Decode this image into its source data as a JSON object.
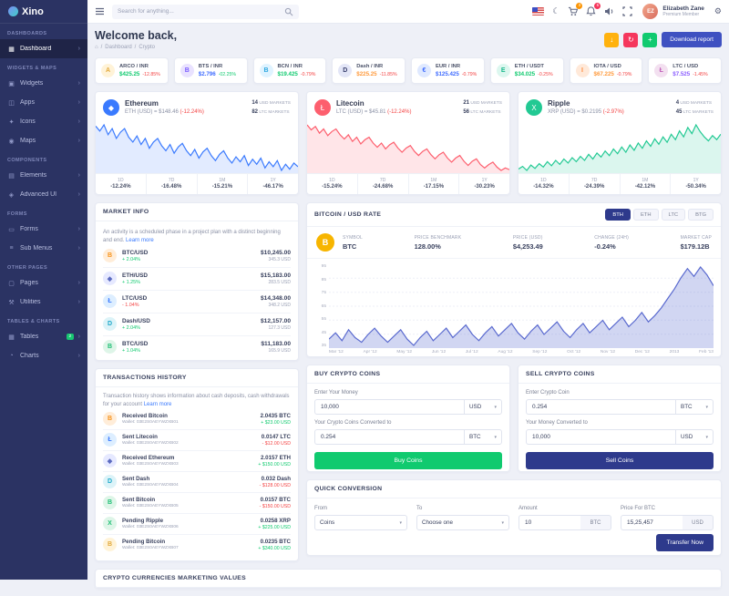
{
  "palette": {
    "sidebar_bg": "#2b3363",
    "primary_navy": "#2e3a8c",
    "accent_blue": "#3f51c1",
    "green": "#10ca6f",
    "red": "#f34343",
    "pink": "#f5365c",
    "orange_badge": "#fb9505",
    "yellow": "#ffb20e",
    "page_bg": "#eef0f7"
  },
  "icons": {
    "dark_mode": "☾",
    "settings": "⚙",
    "home": "⌂",
    "caret_down": "▾",
    "chevron_right": "›"
  },
  "sidebar": {
    "logo_text": "Xino",
    "entries": [
      {
        "cls": "section",
        "label": "DASHBOARDS",
        "dn": "sidebar-section-dashboards",
        "it": "false"
      },
      {
        "cls": "item active",
        "label": "Dashboard",
        "icon": "▦",
        "dn": "sidebar-item-dashboard",
        "it": "true"
      },
      {
        "cls": "section",
        "label": "WIDGETS & MAPS",
        "dn": "sidebar-section-widgets-maps",
        "it": "false"
      },
      {
        "cls": "item",
        "label": "Widgets",
        "icon": "▣",
        "dn": "sidebar-item-widgets",
        "it": "true"
      },
      {
        "cls": "item",
        "label": "Apps",
        "icon": "◫",
        "dn": "sidebar-item-apps",
        "it": "true"
      },
      {
        "cls": "item",
        "label": "Icons",
        "icon": "✦",
        "dn": "sidebar-item-icons",
        "it": "true"
      },
      {
        "cls": "item",
        "label": "Maps",
        "icon": "◉",
        "dn": "sidebar-item-maps",
        "it": "true"
      },
      {
        "cls": "section",
        "label": "COMPONENTS",
        "dn": "sidebar-section-components",
        "it": "false"
      },
      {
        "cls": "item",
        "label": "Elements",
        "icon": "▤",
        "dn": "sidebar-item-elements",
        "it": "true"
      },
      {
        "cls": "item",
        "label": "Advanced UI",
        "icon": "◈",
        "dn": "sidebar-item-advanced-ui",
        "it": "true"
      },
      {
        "cls": "section",
        "label": "FORMS",
        "dn": "sidebar-section-forms",
        "it": "false"
      },
      {
        "cls": "item",
        "label": "Forms",
        "icon": "▭",
        "dn": "sidebar-item-forms",
        "it": "true"
      },
      {
        "cls": "item",
        "label": "Sub Menus",
        "icon": "≡",
        "dn": "sidebar-item-sub-menus",
        "it": "true"
      },
      {
        "cls": "section",
        "label": "OTHER PAGES",
        "dn": "sidebar-section-other-pages",
        "it": "false"
      },
      {
        "cls": "item",
        "label": "Pages",
        "icon": "▢",
        "dn": "sidebar-item-pages",
        "it": "true"
      },
      {
        "cls": "item",
        "label": "Utilities",
        "icon": "⚒",
        "dn": "sidebar-item-utilities",
        "it": "true"
      },
      {
        "cls": "section",
        "label": "TABLES & CHARTS",
        "dn": "sidebar-section-tables-charts",
        "it": "false"
      },
      {
        "cls": "item",
        "label": "Tables",
        "icon": "▦",
        "badge": "2",
        "dn": "sidebar-item-tables",
        "it": "true"
      },
      {
        "cls": "item",
        "label": "Charts",
        "icon": "◔",
        "dn": "sidebar-item-charts",
        "it": "true"
      }
    ]
  },
  "header": {
    "search_placeholder": "Search for anything...",
    "cart_badge": "3",
    "bell_badge": "5",
    "user_name": "Elizabeth Zane",
    "user_role": "Premium Member",
    "avatar_initials": "EZ"
  },
  "welcome": {
    "title": "Welcome back,",
    "breadcrumb": [
      "Dashboard",
      "Crypto"
    ],
    "actions": [
      {
        "dn": "export-button",
        "glyph": "↓",
        "bg": "#ffb20e"
      },
      {
        "dn": "refresh-button",
        "glyph": "↻",
        "bg": "#f5365c"
      },
      {
        "dn": "add-button",
        "glyph": "+",
        "bg": "#10ca6f"
      }
    ],
    "download_label": "Download report"
  },
  "tickers": [
    {
      "pair": "ARCO / INR",
      "price": "$425.25",
      "change": "-12.85%",
      "price_color": "#10ca6f",
      "change_color": "#f34343",
      "icon": "A",
      "icon_bg": "#fff3d8",
      "icon_color": "#e2a93b"
    },
    {
      "pair": "BTS / INR",
      "price": "$2.796",
      "change": "-02.25%",
      "price_color": "#3e6bff",
      "change_color": "#10ca6f",
      "icon": "B",
      "icon_bg": "#e9e2ff",
      "icon_color": "#7a5cff"
    },
    {
      "pair": "BCN / INR",
      "price": "$19.425",
      "change": "-0.79%",
      "price_color": "#10ca6f",
      "change_color": "#f34343",
      "icon": "B",
      "icon_bg": "#dff3ff",
      "icon_color": "#2da8e0"
    },
    {
      "pair": "Dash / INR",
      "price": "$225.25",
      "change": "-11.85%",
      "price_color": "#ff9a3c",
      "change_color": "#f34343",
      "icon": "D",
      "icon_bg": "#e3e6f7",
      "icon_color": "#39406e"
    },
    {
      "pair": "EUR / INR",
      "price": "$125.425",
      "change": "-0.79%",
      "price_color": "#3e6bff",
      "change_color": "#f34343",
      "icon": "€",
      "icon_bg": "#dfe9ff",
      "icon_color": "#3e6bff"
    },
    {
      "pair": "ETH / USDT",
      "price": "$34.025",
      "change": "-0.25%",
      "price_color": "#10ca6f",
      "change_color": "#f34343",
      "icon": "E",
      "icon_bg": "#dcf7ef",
      "icon_color": "#18b88a"
    },
    {
      "pair": "IOTA / USD",
      "price": "$67.225",
      "change": "-0.79%",
      "price_color": "#ff9a3c",
      "change_color": "#f34343",
      "icon": "I",
      "icon_bg": "#ffe9d9",
      "icon_color": "#ff8a3c"
    },
    {
      "pair": "LTC / USD",
      "price": "$7.525",
      "change": "-1.45%",
      "price_color": "#8a5cff",
      "change_color": "#f34343",
      "icon": "Ł",
      "icon_bg": "#f3e0f0",
      "icon_color": "#c05cb8"
    }
  ],
  "coins": [
    {
      "name": "Ethereum",
      "sub": "ETH (USD) = $148.46",
      "change": "(-12.24%)",
      "icon": "◆",
      "icon_bg": "#3a7afe",
      "markets_a_num": "14",
      "markets_a_label": "USD MARKETS",
      "markets_b_num": "82",
      "markets_b_label": "LTC MARKETS",
      "stats": [
        {
          "label": "1D",
          "value": "-12.24%"
        },
        {
          "label": "7D",
          "value": "-16.48%"
        },
        {
          "label": "1M",
          "value": "-15.21%"
        },
        {
          "label": "1Y",
          "value": "-46.17%"
        }
      ],
      "chart": {
        "values": [
          62,
          58,
          63,
          55,
          60,
          52,
          57,
          60,
          53,
          49,
          54,
          47,
          52,
          44,
          49,
          52,
          46,
          42,
          47,
          40,
          45,
          48,
          42,
          38,
          43,
          36,
          41,
          44,
          38,
          34,
          39,
          42,
          36,
          32,
          37,
          33,
          38,
          30,
          35,
          31,
          36,
          28,
          33,
          29,
          34,
          26,
          31,
          27,
          32,
          29
        ],
        "color": "#3a7afe",
        "fill": "rgba(58,122,254,0.15)"
      }
    },
    {
      "name": "Litecoin",
      "sub": "LTC (USD) = $45.81",
      "change": "(-12.24%)",
      "icon": "Ł",
      "icon_bg": "#fd5f6e",
      "markets_a_num": "21",
      "markets_a_label": "USD MARKETS",
      "markets_b_num": "56",
      "markets_b_label": "LTC MARKETS",
      "stats": [
        {
          "label": "1D",
          "value": "-15.24%"
        },
        {
          "label": "7D",
          "value": "-24.68%"
        },
        {
          "label": "1M",
          "value": "-17.15%"
        },
        {
          "label": "1Y",
          "value": "-30.23%"
        }
      ],
      "chart": {
        "values": [
          70,
          64,
          68,
          60,
          65,
          57,
          62,
          65,
          58,
          53,
          58,
          50,
          55,
          47,
          52,
          55,
          48,
          43,
          48,
          41,
          46,
          49,
          42,
          37,
          42,
          45,
          38,
          33,
          38,
          41,
          34,
          29,
          34,
          37,
          30,
          25,
          30,
          33,
          26,
          21,
          26,
          29,
          22,
          18,
          22,
          25,
          19,
          15,
          18,
          16
        ],
        "color": "#fd5f6e",
        "fill": "rgba(253,95,110,0.16)"
      }
    },
    {
      "name": "Ripple",
      "sub": "XRP (USD) = $0.2195",
      "change": "(-2.97%)",
      "icon": "X",
      "icon_bg": "#22c993",
      "markets_a_num": "4",
      "markets_a_label": "USD MARKETS",
      "markets_b_num": "45",
      "markets_b_label": "LTC MARKETS",
      "stats": [
        {
          "label": "1D",
          "value": "-14.32%"
        },
        {
          "label": "7D",
          "value": "-24.39%"
        },
        {
          "label": "1M",
          "value": "-42.12%"
        },
        {
          "label": "1Y",
          "value": "-50.34%"
        }
      ],
      "chart": {
        "values": [
          22,
          26,
          20,
          28,
          23,
          30,
          25,
          33,
          27,
          35,
          29,
          37,
          31,
          39,
          33,
          41,
          35,
          44,
          37,
          46,
          40,
          49,
          42,
          52,
          45,
          55,
          47,
          58,
          50,
          61,
          53,
          64,
          56,
          67,
          59,
          70,
          62,
          74,
          66,
          79,
          70,
          84,
          75,
          88,
          78,
          70,
          64,
          72,
          66,
          74
        ],
        "color": "#22c993",
        "fill": "rgba(34,201,147,0.16)"
      }
    }
  ],
  "market_info": {
    "title": "MARKET INFO",
    "description": "An activity is a scheduled phase in a project plan with a distinct beginning and end.",
    "learn_more": "Learn more",
    "rows": [
      {
        "pair": "BTC/USD",
        "change": "+ 2.04%",
        "change_color": "#10ca6f",
        "price": "$10,245.00",
        "sub": "345.3 USD",
        "icon": "B",
        "icon_bg": "#ffedd9",
        "icon_color": "#f7931a"
      },
      {
        "pair": "ETH/USD",
        "change": "+ 1.25%",
        "change_color": "#10ca6f",
        "price": "$15,183.00",
        "sub": "283.5 USD",
        "icon": "◆",
        "icon_bg": "#e6e9ff",
        "icon_color": "#5c6bc0"
      },
      {
        "pair": "LTC/USD",
        "change": "- 1.04%",
        "change_color": "#f34343",
        "price": "$14,348.00",
        "sub": "348.2 USD",
        "icon": "Ł",
        "icon_bg": "#ddeeff",
        "icon_color": "#3a7afe"
      },
      {
        "pair": "Dash/USD",
        "change": "+ 2.04%",
        "change_color": "#10ca6f",
        "price": "$12,157.00",
        "sub": "127.3 USD",
        "icon": "D",
        "icon_bg": "#dcf3f8",
        "icon_color": "#1ba7c9"
      },
      {
        "pair": "BTC/USD",
        "change": "+ 1.04%",
        "change_color": "#10ca6f",
        "price": "$11,183.00",
        "sub": "165.9 USD",
        "icon": "B",
        "icon_bg": "#def5e8",
        "icon_color": "#1fbf75"
      }
    ]
  },
  "btc_rate": {
    "title": "BITCOIN / USD RATE",
    "tabs": [
      {
        "label": "BTH",
        "cls": "active"
      },
      {
        "label": "ETH"
      },
      {
        "label": "LTC"
      },
      {
        "label": "BTG"
      }
    ],
    "icon": "B",
    "stats": [
      {
        "label": "SYMBOL",
        "value": "BTC"
      },
      {
        "label": "PRICE BENCHMARK",
        "value": "128.00%"
      },
      {
        "label": "PRICE (USD)",
        "value": "$4,253.49"
      },
      {
        "label": "CHANGE (24H)",
        "value": "-0.24%"
      },
      {
        "label": "MARKET CAP",
        "value": "$179.12B"
      }
    ],
    "y_labels": [
      "95",
      "85",
      "75",
      "65",
      "55",
      "45",
      "35"
    ],
    "x_labels": [
      "Mar '12",
      "Apr '12",
      "May '12",
      "Jun '12",
      "Jul '12",
      "Aug '12",
      "Sep '12",
      "Oct '12",
      "Nov '12",
      "Dec '12",
      "2013",
      "Feb '13"
    ],
    "chart": {
      "values": [
        46,
        50,
        45,
        52,
        47,
        44,
        49,
        53,
        48,
        44,
        48,
        52,
        46,
        42,
        47,
        51,
        45,
        49,
        53,
        47,
        51,
        55,
        49,
        45,
        50,
        54,
        48,
        52,
        56,
        50,
        46,
        51,
        55,
        49,
        53,
        57,
        51,
        47,
        52,
        56,
        50,
        54,
        58,
        52,
        56,
        60,
        54,
        58,
        63,
        57,
        61,
        66,
        72,
        78,
        85,
        91,
        86,
        92,
        87,
        80
      ],
      "color": "#5a6acf",
      "fill": "rgba(90,106,207,0.28)",
      "grid": true
    }
  },
  "transactions": {
    "title": "TRANSACTIONS HISTORY",
    "description": "Transaction history shows information about cash deposits, cash withdrawals for your account",
    "learn_more": "Learn more",
    "rows": [
      {
        "name": "Received Bitcoin",
        "wallet": "Wallet: 03E2S0AEYWZXB01",
        "amount": "2.0435 BTC",
        "usd": "+ $23.00 USD",
        "usd_color": "#10ca6f",
        "icon": "B",
        "icon_bg": "#ffedd9",
        "icon_color": "#f7931a"
      },
      {
        "name": "Sent Litecoin",
        "wallet": "Wallet: 03E2S0AEYWZXB02",
        "amount": "0.0147 LTC",
        "usd": "- $12.00 USD",
        "usd_color": "#f34343",
        "icon": "Ł",
        "icon_bg": "#ddeeff",
        "icon_color": "#3a7afe"
      },
      {
        "name": "Received Ethereum",
        "wallet": "Wallet: 03E2S0AEYWZXB03",
        "amount": "2.0157 ETH",
        "usd": "+ $150.00 USD",
        "usd_color": "#10ca6f",
        "icon": "◆",
        "icon_bg": "#e6e9ff",
        "icon_color": "#5c6bc0"
      },
      {
        "name": "Sent Dash",
        "wallet": "Wallet: 03E2S0AEYWZXB04",
        "amount": "0.032 Dash",
        "usd": "- $128.00 USD",
        "usd_color": "#f34343",
        "icon": "D",
        "icon_bg": "#dcf3f8",
        "icon_color": "#1ba7c9"
      },
      {
        "name": "Sent Bitcoin",
        "wallet": "Wallet: 03E2S0AEYWZXB05",
        "amount": "0.0157 BTC",
        "usd": "- $150.00 USD",
        "usd_color": "#f34343",
        "icon": "B",
        "icon_bg": "#def5e8",
        "icon_color": "#1fbf75"
      },
      {
        "name": "Pending Ripple",
        "wallet": "Wallet: 03E2S0AEYWZXB06",
        "amount": "0.0258 XRP",
        "usd": "+ $225.00 USD",
        "usd_color": "#10ca6f",
        "icon": "X",
        "icon_bg": "#def5e8",
        "icon_color": "#1fbf75"
      },
      {
        "name": "Pending Bitcoin",
        "wallet": "Wallet: 03E2S0AEYWZXB07",
        "amount": "0.0235 BTC",
        "usd": "+ $340.00 USD",
        "usd_color": "#10ca6f",
        "icon": "B",
        "icon_bg": "#fff3d8",
        "icon_color": "#e2a93b"
      }
    ]
  },
  "buy": {
    "title": "BUY CRYPTO COINS",
    "field1_label": "Enter Your Money",
    "field1_value": "10,000",
    "field1_unit": "USD",
    "field2_label": "Your Crypto Coins Converted to",
    "field2_value": "0.254",
    "field2_unit": "BTC",
    "button": "Buy Coins"
  },
  "sell": {
    "title": "SELL CRYPTO COINS",
    "field1_label": "Enter Crypto Coin",
    "field1_value": "0.254",
    "field1_unit": "BTC",
    "field2_label": "Your Money Converted to",
    "field2_value": "10,000",
    "field2_unit": "USD",
    "button": "Sell Coins"
  },
  "quick": {
    "title": "QUICK CONVERSION",
    "from_label": "From",
    "from_value": "Coins",
    "to_label": "To",
    "to_value": "Choose one",
    "amount_label": "Amount",
    "amount_value": "10",
    "amount_unit": "BTC",
    "price_label": "Price For BTC",
    "price_value": "15,25,457",
    "price_unit": "USD",
    "button": "Transfer Now"
  },
  "bottom": {
    "title": "CRYPTO CURRENCIES MARKETING VALUES"
  }
}
